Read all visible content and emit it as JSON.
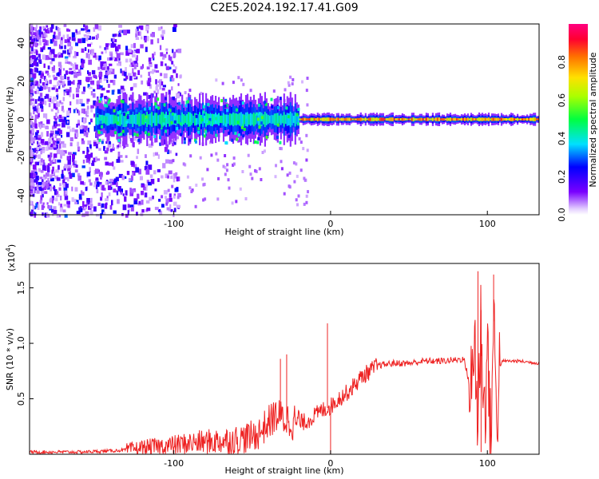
{
  "figure": {
    "title": "C2E5.2024.192.17.41.G09"
  },
  "chart_data": [
    {
      "type": "heatmap",
      "xlabel": "Height of straight line (km)",
      "ylabel": "Frequency (Hz)",
      "xlim": [
        -192,
        133
      ],
      "ylim": [
        -50,
        50
      ],
      "xticks": [
        -100,
        0,
        100
      ],
      "yticks": [
        40,
        20,
        0,
        -20,
        -40
      ],
      "colorbar": {
        "label": "Normalized spectral amplitude",
        "range": [
          0.0,
          1.0
        ],
        "ticks": [
          "0.0",
          "0.2",
          "0.4",
          "0.6",
          "0.8"
        ],
        "colormap": "rainbow (white-violet-blue-cyan-green-yellow-red-magenta)"
      },
      "description": "Broadband noise (amplitude ~0.1-0.4) at heights below -110 km; a band centered near 0 Hz with amplitude ~0.3-0.6 between -150 and -20 km; a narrow high-amplitude (~0.8-0.9) line at 0 Hz from about -20 km to 133 km, with disturbances near 0 km and 90-105 km.",
      "band": {
        "center_hz": 0,
        "segments": [
          {
            "x": [
              -150,
              -20
            ],
            "halfwidth_hz": 6,
            "amplitude": 0.45
          },
          {
            "x": [
              -20,
              133
            ],
            "halfwidth_hz": 1.5,
            "amplitude": 0.85
          }
        ]
      }
    },
    {
      "type": "line",
      "xlabel": "Height of straight line (km)",
      "ylabel": "SNR (10 * v/v)",
      "y_scale_label": "(x10",
      "y_scale_exp": "4",
      "y_scale_close": ")",
      "xlim": [
        -192,
        133
      ],
      "ylim": [
        0,
        1.72
      ],
      "xticks": [
        -100,
        0,
        100
      ],
      "yticks": [
        0.5,
        1.0,
        1.5
      ],
      "ytick_labels": [
        "0.5",
        "1.0",
        "1.5"
      ],
      "grid": false,
      "color": "#ee2222",
      "series": [
        {
          "x": [
            -192,
            -160,
            -140,
            -130,
            -120,
            -110,
            -100,
            -90,
            -80,
            -70,
            -60,
            -50,
            -45,
            -40,
            -35,
            -30,
            -25,
            -20,
            -15,
            -10,
            -5,
            0,
            5,
            10,
            15,
            20,
            25,
            30,
            40,
            50,
            60,
            70,
            80,
            85,
            90,
            92,
            94,
            96,
            98,
            100,
            102,
            104,
            106,
            108,
            110,
            120,
            133
          ],
          "y": [
            0.02,
            0.02,
            0.03,
            0.04,
            0.06,
            0.07,
            0.08,
            0.1,
            0.11,
            0.12,
            0.13,
            0.16,
            0.2,
            0.28,
            0.35,
            0.32,
            0.3,
            0.28,
            0.3,
            0.35,
            0.4,
            0.43,
            0.5,
            0.55,
            0.62,
            0.7,
            0.75,
            0.8,
            0.82,
            0.82,
            0.84,
            0.84,
            0.85,
            0.86,
            0.55,
            1.1,
            0.2,
            1.3,
            0.3,
            1.0,
            0.1,
            1.2,
            0.4,
            0.8,
            0.84,
            0.84,
            0.82
          ]
        }
      ],
      "spikes": [
        {
          "x": -32,
          "y": 0.86
        },
        {
          "x": -28,
          "y": 0.9
        },
        {
          "x": -2,
          "y": 1.18
        },
        {
          "x": 0,
          "y": 0.0
        },
        {
          "x": 94,
          "y": 1.65
        },
        {
          "x": 96,
          "y": 0.02
        },
        {
          "x": 104,
          "y": 1.62
        }
      ]
    }
  ]
}
